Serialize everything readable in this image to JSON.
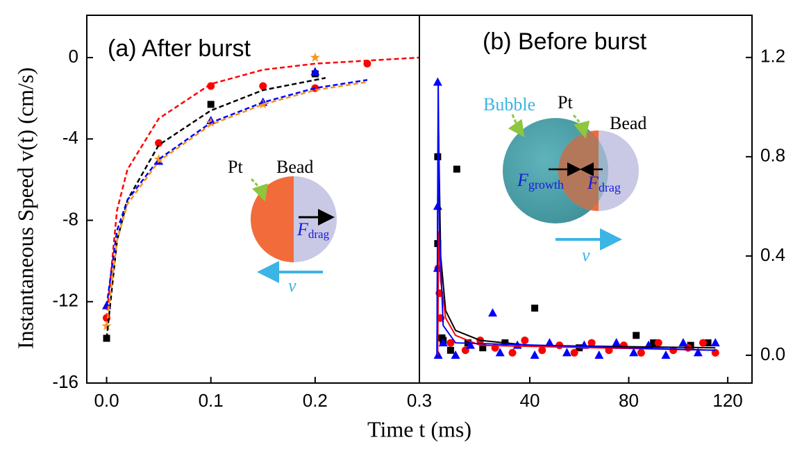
{
  "shared": {
    "xlabel": "Time t (ms)",
    "ylabel": "Instantaneous Speed v(t) (cm/s)"
  },
  "chart_data": [
    {
      "type": "scatter",
      "title": "(a) After burst",
      "xlim": [
        -0.019,
        0.3
      ],
      "ylim": [
        -16,
        2.08
      ],
      "xticks": [
        {
          "value": 0,
          "label": "0.0"
        },
        0.1,
        0.2,
        0.3
      ],
      "yticks": [
        0,
        -4,
        -8,
        -12,
        -16
      ],
      "series": [
        {
          "marker": "square",
          "color": "#000000",
          "mode": "markers",
          "x": [
            0,
            0.1,
            0.2
          ],
          "values": [
            -13.8,
            -2.3,
            -0.8
          ]
        },
        {
          "marker": "circle",
          "color": "#ff0000",
          "mode": "markers",
          "x": [
            0,
            0.05,
            0.1,
            0.15,
            0.2,
            0.25
          ],
          "values": [
            -12.8,
            -4.2,
            -1.4,
            -1.4,
            -1.5,
            -0.3
          ]
        },
        {
          "marker": "triangle",
          "color": "#0000ff",
          "mode": "markers",
          "x": [
            0,
            0.05,
            0.1,
            0.15,
            0.2
          ],
          "values": [
            -12.2,
            -5.1,
            -3.1,
            -2.2,
            -0.7
          ]
        },
        {
          "marker": "star",
          "color": "#f7941d",
          "mode": "markers",
          "x": [
            0,
            0.05,
            0.1,
            0.15,
            0.2
          ],
          "values": [
            -13.2,
            -5.0,
            -3.2,
            -2.3,
            0.0
          ]
        },
        {
          "color": "#ff0000",
          "mode": "dashed",
          "x": [
            0,
            0.01,
            0.02,
            0.05,
            0.1,
            0.15,
            0.2,
            0.25,
            0.3
          ],
          "values": [
            -12.8,
            -7.5,
            -5.5,
            -3.0,
            -1.3,
            -0.6,
            -0.3,
            -0.15,
            0
          ]
        },
        {
          "color": "#000000",
          "mode": "dashed",
          "x": [
            0,
            0.01,
            0.02,
            0.05,
            0.1,
            0.15,
            0.21
          ],
          "values": [
            -13.8,
            -9,
            -7,
            -4.3,
            -2.6,
            -1.6,
            -1.0
          ]
        },
        {
          "color": "#0000ff",
          "mode": "dashed",
          "x": [
            0,
            0.01,
            0.02,
            0.05,
            0.1,
            0.15,
            0.2,
            0.25
          ],
          "values": [
            -12.2,
            -8.5,
            -7,
            -5.0,
            -3.2,
            -2.2,
            -1.5,
            -1.1
          ]
        },
        {
          "color": "#f7941d",
          "mode": "dashed",
          "x": [
            0,
            0.01,
            0.02,
            0.05,
            0.1,
            0.15,
            0.2,
            0.25
          ],
          "values": [
            -13.2,
            -9,
            -7.2,
            -5.1,
            -3.3,
            -2.3,
            -1.6,
            -1.2
          ]
        }
      ],
      "annotations": {
        "pt": "Pt",
        "bead": "Bead",
        "force": "F",
        "force_sub": "drag",
        "velocity": "v"
      }
    },
    {
      "type": "scatter",
      "title": "(b) Before burst",
      "xlim": [
        -4.6,
        129.8
      ],
      "y2lim": [
        -0.112,
        1.37
      ],
      "xticks": [
        40,
        80,
        120
      ],
      "y2ticks": [
        {
          "value": 0,
          "label": "0.0"
        },
        0.4,
        0.8,
        1.2
      ],
      "series": [
        {
          "marker": "square",
          "color": "#000000",
          "mode": "markers",
          "axis": "y2",
          "x": [
            2.8,
            2.8,
            4.5,
            5,
            10.5,
            8,
            15,
            21,
            30,
            42,
            60,
            83,
            90,
            105,
            112
          ],
          "values": [
            0.8,
            0.45,
            0.07,
            0.06,
            0.75,
            0.02,
            0.05,
            0.03,
            0.05,
            0.19,
            0.03,
            0.08,
            0.05,
            0.04,
            0.05
          ]
        },
        {
          "marker": "circle",
          "color": "#ff0000",
          "mode": "markers",
          "axis": "y2",
          "x": [
            3,
            3.5,
            4,
            8,
            14,
            20,
            26,
            33,
            38,
            45,
            52,
            58,
            65,
            72,
            78,
            85,
            92,
            98,
            104,
            110,
            115
          ],
          "values": [
            0.35,
            0.25,
            0.15,
            0.05,
            0.02,
            0.06,
            0.03,
            0.01,
            0.06,
            0.02,
            0.04,
            0.01,
            0.05,
            0.02,
            0.04,
            0.01,
            0.05,
            0.02,
            0.03,
            0.05,
            0.01
          ]
        },
        {
          "marker": "triangle",
          "color": "#0000ff",
          "mode": "markers",
          "axis": "y2",
          "x": [
            2.8,
            2.8,
            2.8,
            3,
            5,
            10,
            16,
            25,
            28,
            35,
            42,
            48,
            55,
            62,
            68,
            75,
            82,
            88,
            95,
            102,
            108,
            115
          ],
          "values": [
            1.1,
            0.6,
            0.35,
            0.0,
            0.05,
            0.0,
            0.04,
            0.17,
            0.01,
            0.04,
            0.0,
            0.05,
            0.01,
            0.04,
            0.0,
            0.05,
            0.01,
            0.04,
            0.0,
            0.05,
            0.01,
            0.05
          ]
        },
        {
          "color": "#000000",
          "mode": "solid",
          "axis": "y2",
          "x": [
            2.5,
            3,
            4,
            6,
            10,
            20,
            40,
            115
          ],
          "values": [
            0,
            0.98,
            0.4,
            0.18,
            0.1,
            0.06,
            0.04,
            0.03
          ]
        },
        {
          "color": "#ff0000",
          "mode": "solid",
          "axis": "y2",
          "x": [
            2.8,
            3.2,
            4,
            6,
            10,
            20,
            115
          ],
          "values": [
            0,
            0.5,
            0.3,
            0.15,
            0.08,
            0.04,
            0.02
          ]
        },
        {
          "color": "#0000ff",
          "mode": "solid",
          "axis": "y2",
          "x": [
            2.5,
            3,
            3.5,
            5,
            10,
            115
          ],
          "values": [
            0,
            1.1,
            0.5,
            0.12,
            0.05,
            0.02
          ]
        }
      ],
      "annotations": {
        "bubble": "Bubble",
        "pt": "Pt",
        "bead": "Bead",
        "force1": "F",
        "force1_sub": "growth",
        "force2": "F",
        "force2_sub": "drag",
        "velocity": "v"
      }
    }
  ]
}
